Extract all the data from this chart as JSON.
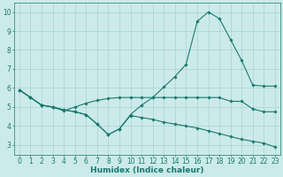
{
  "line1_y": [
    5.9,
    5.5,
    5.1,
    5.0,
    4.8,
    5.0,
    5.2,
    5.35,
    5.45,
    5.5,
    5.5,
    5.5,
    5.5,
    5.5,
    5.5,
    5.5,
    5.5,
    5.5,
    5.5,
    5.3,
    5.3,
    4.9,
    4.75,
    4.75
  ],
  "line2_y": [
    5.9,
    5.5,
    5.1,
    5.0,
    4.85,
    4.75,
    4.6,
    4.1,
    3.55,
    3.85,
    4.6,
    5.1,
    5.5,
    6.05,
    6.6,
    7.25,
    9.5,
    10.0,
    9.65,
    8.55,
    7.45,
    6.15,
    6.1,
    6.1
  ],
  "line3_y": [
    5.9,
    5.5,
    5.1,
    5.0,
    4.85,
    4.75,
    4.6,
    4.1,
    3.55,
    3.85,
    4.55,
    4.45,
    4.35,
    4.2,
    4.1,
    4.0,
    3.9,
    3.75,
    3.6,
    3.45,
    3.3,
    3.2,
    3.1,
    2.9
  ],
  "x": [
    0,
    1,
    2,
    3,
    4,
    5,
    6,
    7,
    8,
    9,
    10,
    11,
    12,
    13,
    14,
    15,
    16,
    17,
    18,
    19,
    20,
    21,
    22,
    23
  ],
  "line_color": "#1a7a6e",
  "bg_color": "#cceaea",
  "grid_color": "#9ecece",
  "xlabel": "Humidex (Indice chaleur)",
  "xlim": [
    -0.5,
    23.5
  ],
  "ylim": [
    2.5,
    10.5
  ],
  "yticks": [
    3,
    4,
    5,
    6,
    7,
    8,
    9,
    10
  ],
  "xticks": [
    0,
    1,
    2,
    3,
    4,
    5,
    6,
    7,
    8,
    9,
    10,
    11,
    12,
    13,
    14,
    15,
    16,
    17,
    18,
    19,
    20,
    21,
    22,
    23
  ],
  "marker": "D",
  "markersize": 1.8,
  "linewidth": 0.8,
  "tick_fontsize": 5.5,
  "xlabel_fontsize": 6.5
}
